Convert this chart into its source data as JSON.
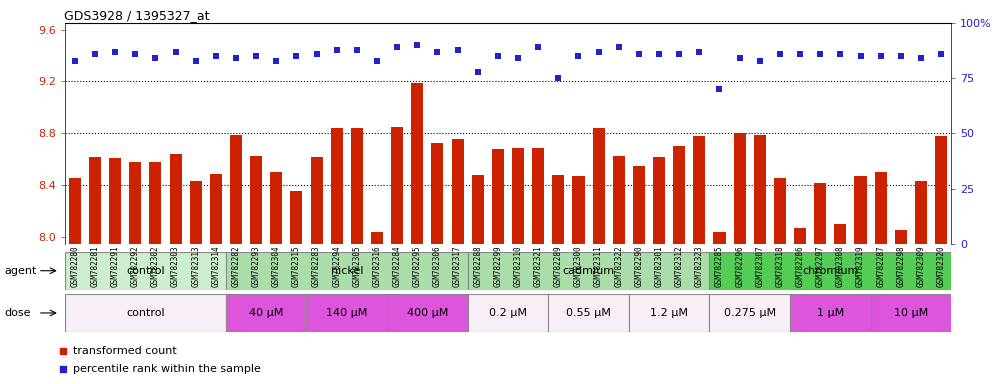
{
  "title": "GDS3928 / 1395327_at",
  "samples": [
    "GSM782280",
    "GSM782281",
    "GSM782291",
    "GSM782292",
    "GSM782302",
    "GSM782303",
    "GSM782313",
    "GSM782314",
    "GSM782282",
    "GSM782293",
    "GSM782304",
    "GSM782315",
    "GSM782283",
    "GSM782294",
    "GSM782305",
    "GSM782316",
    "GSM782284",
    "GSM782295",
    "GSM782306",
    "GSM782317",
    "GSM782288",
    "GSM782299",
    "GSM782310",
    "GSM782321",
    "GSM782289",
    "GSM782300",
    "GSM782311",
    "GSM782322",
    "GSM782290",
    "GSM782301",
    "GSM782312",
    "GSM782323",
    "GSM782285",
    "GSM782296",
    "GSM782307",
    "GSM782318",
    "GSM782286",
    "GSM782297",
    "GSM782308",
    "GSM782319",
    "GSM782287",
    "GSM782298",
    "GSM782309",
    "GSM782320"
  ],
  "bar_values": [
    8.46,
    8.62,
    8.61,
    8.58,
    8.58,
    8.64,
    8.43,
    8.49,
    8.79,
    8.63,
    8.5,
    8.36,
    8.62,
    8.84,
    8.84,
    8.04,
    8.85,
    9.19,
    8.73,
    8.76,
    8.48,
    8.68,
    8.69,
    8.69,
    8.48,
    8.47,
    8.84,
    8.63,
    8.55,
    8.62,
    8.7,
    8.78,
    8.04,
    8.8,
    8.79,
    8.46,
    8.07,
    8.42,
    8.1,
    8.47,
    8.5,
    8.06,
    8.43,
    8.78
  ],
  "dot_values_pct": [
    83,
    86,
    87,
    86,
    84,
    87,
    83,
    85,
    84,
    85,
    83,
    85,
    86,
    88,
    88,
    83,
    89,
    90,
    87,
    88,
    78,
    85,
    84,
    89,
    75,
    85,
    87,
    89,
    86,
    86,
    86,
    87,
    70,
    84,
    83,
    86,
    86,
    86,
    86,
    85,
    85,
    85,
    84,
    86
  ],
  "bar_color": "#cc2200",
  "dot_color": "#2222cc",
  "ylim_left": [
    7.95,
    9.65
  ],
  "ylim_right": [
    0,
    100
  ],
  "yticks_left": [
    8.0,
    8.4,
    8.8,
    9.2,
    9.6
  ],
  "yticks_right": [
    0,
    25,
    50,
    75,
    100
  ],
  "hlines": [
    8.4,
    8.8,
    9.2
  ],
  "agent_groups": [
    {
      "label": "control",
      "start": 0,
      "end": 8,
      "color": "#cceecc"
    },
    {
      "label": "nickel",
      "start": 8,
      "end": 20,
      "color": "#aaddaa"
    },
    {
      "label": "cadmium",
      "start": 20,
      "end": 32,
      "color": "#aaddaa"
    },
    {
      "label": "chromium",
      "start": 32,
      "end": 44,
      "color": "#55cc55"
    }
  ],
  "dose_groups": [
    {
      "label": "control",
      "start": 0,
      "end": 8,
      "color": "#f8eef8"
    },
    {
      "label": "40 μM",
      "start": 8,
      "end": 12,
      "color": "#dd55dd"
    },
    {
      "label": "140 μM",
      "start": 12,
      "end": 16,
      "color": "#dd55dd"
    },
    {
      "label": "400 μM",
      "start": 16,
      "end": 20,
      "color": "#dd55dd"
    },
    {
      "label": "0.2 μM",
      "start": 20,
      "end": 24,
      "color": "#f8eef8"
    },
    {
      "label": "0.55 μM",
      "start": 24,
      "end": 28,
      "color": "#f8eef8"
    },
    {
      "label": "1.2 μM",
      "start": 28,
      "end": 32,
      "color": "#f8eef8"
    },
    {
      "label": "0.275 μM",
      "start": 32,
      "end": 36,
      "color": "#f8eef8"
    },
    {
      "label": "1 μM",
      "start": 36,
      "end": 40,
      "color": "#dd55dd"
    },
    {
      "label": "10 μM",
      "start": 40,
      "end": 44,
      "color": "#dd55dd"
    }
  ],
  "legend_items": [
    {
      "label": "transformed count",
      "color": "#cc2200",
      "marker": "s"
    },
    {
      "label": "percentile rank within the sample",
      "color": "#2222cc",
      "marker": "s"
    }
  ],
  "xtick_bg_color": "#d8d8d8",
  "plot_bg_color": "#ffffff",
  "fig_bg_color": "#ffffff"
}
